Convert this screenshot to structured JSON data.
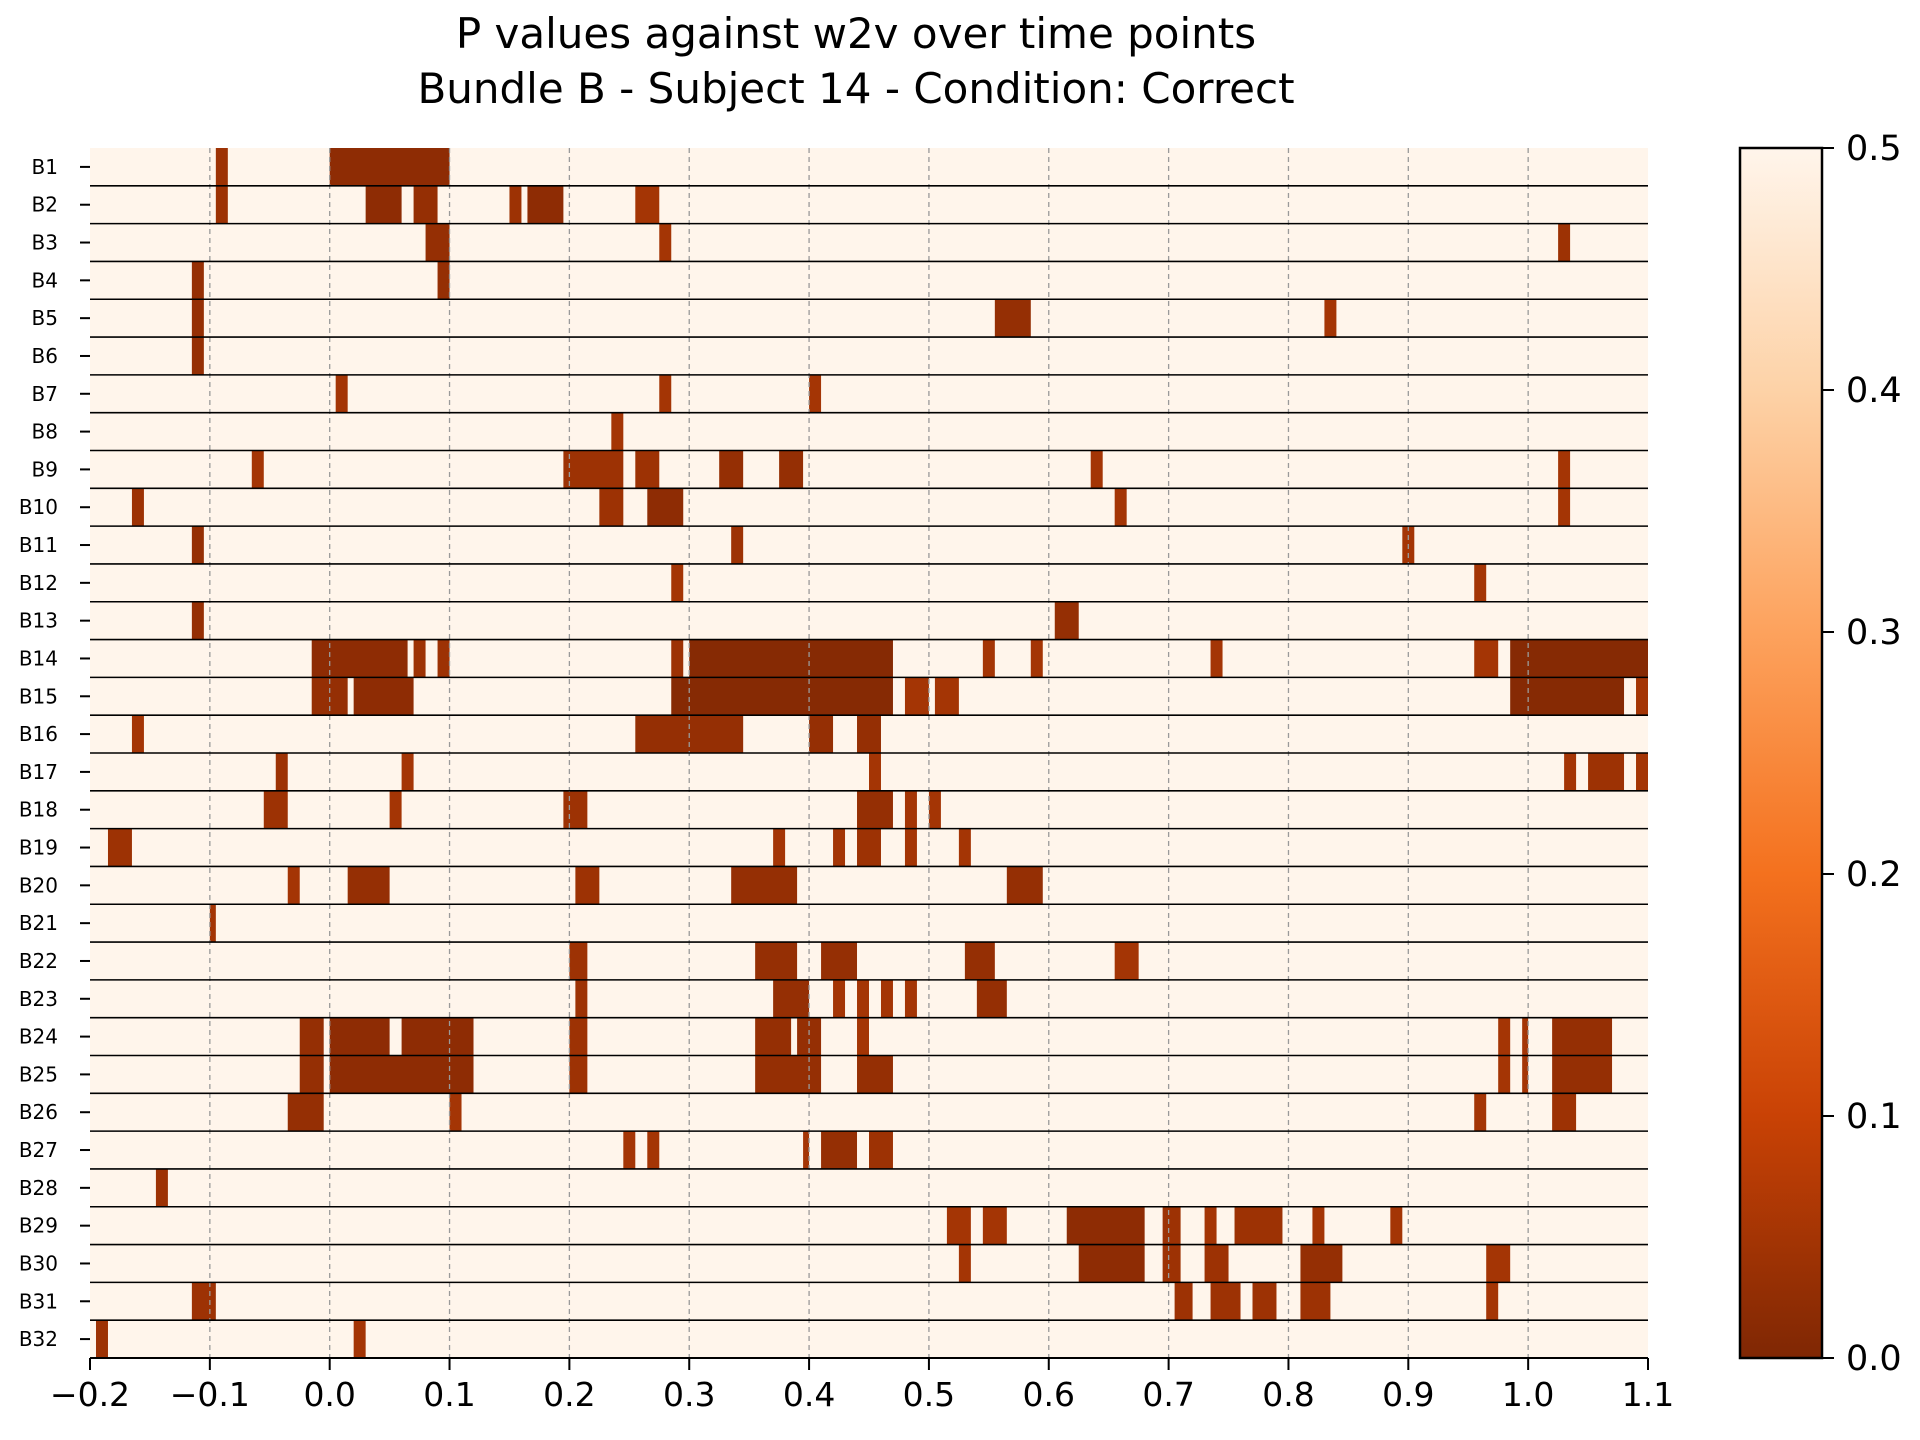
{
  "chart_data": {
    "type": "heatmap",
    "title": "P values against w2v over time points",
    "subtitle": "Bundle B - Subject 14 - Condition: Correct",
    "xlabel": "",
    "ylabel": "",
    "xlim": [
      -0.2,
      1.1
    ],
    "x_ticks": [
      "−0.2",
      "−0.1",
      "0.0",
      "0.1",
      "0.2",
      "0.3",
      "0.4",
      "0.5",
      "0.6",
      "0.7",
      "0.8",
      "0.9",
      "1.0",
      "1.1"
    ],
    "x_tick_values": [
      -0.2,
      -0.1,
      0.0,
      0.1,
      0.2,
      0.3,
      0.4,
      0.5,
      0.6,
      0.7,
      0.8,
      0.9,
      1.0,
      1.1
    ],
    "rows": [
      "B1",
      "B2",
      "B3",
      "B4",
      "B5",
      "B6",
      "B7",
      "B8",
      "B9",
      "B10",
      "B11",
      "B12",
      "B13",
      "B14",
      "B15",
      "B16",
      "B17",
      "B18",
      "B19",
      "B20",
      "B21",
      "B22",
      "B23",
      "B24",
      "B25",
      "B26",
      "B27",
      "B28",
      "B29",
      "B30",
      "B31",
      "B32"
    ],
    "grid": "dashed vertical lines at x ticks",
    "colormap": "Oranges reversed",
    "colorbar": {
      "range": [
        0.0,
        0.5
      ],
      "ticks": [
        "0.0",
        "0.1",
        "0.2",
        "0.3",
        "0.4",
        "0.5"
      ],
      "tick_values": [
        0.0,
        0.1,
        0.2,
        0.3,
        0.4,
        0.5
      ]
    },
    "background_value": 0.5,
    "significant_segments": [
      {
        "row": "B1",
        "x0": -0.095,
        "x1": -0.085,
        "p": 0.04
      },
      {
        "row": "B1",
        "x0": 0.0,
        "x1": 0.1,
        "p": 0.02
      },
      {
        "row": "B2",
        "x0": -0.095,
        "x1": -0.085,
        "p": 0.04
      },
      {
        "row": "B2",
        "x0": 0.03,
        "x1": 0.06,
        "p": 0.02
      },
      {
        "row": "B2",
        "x0": 0.07,
        "x1": 0.09,
        "p": 0.03
      },
      {
        "row": "B2",
        "x0": 0.15,
        "x1": 0.16,
        "p": 0.04
      },
      {
        "row": "B2",
        "x0": 0.165,
        "x1": 0.195,
        "p": 0.02
      },
      {
        "row": "B2",
        "x0": 0.255,
        "x1": 0.275,
        "p": 0.05
      },
      {
        "row": "B3",
        "x0": 0.08,
        "x1": 0.1,
        "p": 0.03
      },
      {
        "row": "B3",
        "x0": 0.275,
        "x1": 0.285,
        "p": 0.05
      },
      {
        "row": "B3",
        "x0": 1.025,
        "x1": 1.035,
        "p": 0.04
      },
      {
        "row": "B4",
        "x0": -0.115,
        "x1": -0.105,
        "p": 0.03
      },
      {
        "row": "B4",
        "x0": 0.09,
        "x1": 0.1,
        "p": 0.03
      },
      {
        "row": "B5",
        "x0": -0.115,
        "x1": -0.105,
        "p": 0.03
      },
      {
        "row": "B5",
        "x0": 0.555,
        "x1": 0.585,
        "p": 0.03
      },
      {
        "row": "B5",
        "x0": 0.83,
        "x1": 0.84,
        "p": 0.05
      },
      {
        "row": "B6",
        "x0": -0.115,
        "x1": -0.105,
        "p": 0.03
      },
      {
        "row": "B7",
        "x0": 0.005,
        "x1": 0.015,
        "p": 0.05
      },
      {
        "row": "B7",
        "x0": 0.275,
        "x1": 0.285,
        "p": 0.05
      },
      {
        "row": "B7",
        "x0": 0.4,
        "x1": 0.41,
        "p": 0.05
      },
      {
        "row": "B8",
        "x0": 0.235,
        "x1": 0.245,
        "p": 0.05
      },
      {
        "row": "B9",
        "x0": -0.065,
        "x1": -0.055,
        "p": 0.05
      },
      {
        "row": "B9",
        "x0": 0.195,
        "x1": 0.245,
        "p": 0.04
      },
      {
        "row": "B9",
        "x0": 0.255,
        "x1": 0.275,
        "p": 0.04
      },
      {
        "row": "B9",
        "x0": 0.325,
        "x1": 0.345,
        "p": 0.03
      },
      {
        "row": "B9",
        "x0": 0.375,
        "x1": 0.395,
        "p": 0.03
      },
      {
        "row": "B9",
        "x0": 0.635,
        "x1": 0.645,
        "p": 0.05
      },
      {
        "row": "B9",
        "x0": 1.025,
        "x1": 1.035,
        "p": 0.05
      },
      {
        "row": "B10",
        "x0": -0.165,
        "x1": -0.155,
        "p": 0.04
      },
      {
        "row": "B10",
        "x0": 0.225,
        "x1": 0.245,
        "p": 0.04
      },
      {
        "row": "B10",
        "x0": 0.265,
        "x1": 0.295,
        "p": 0.02
      },
      {
        "row": "B10",
        "x0": 0.655,
        "x1": 0.665,
        "p": 0.05
      },
      {
        "row": "B10",
        "x0": 1.025,
        "x1": 1.035,
        "p": 0.05
      },
      {
        "row": "B11",
        "x0": -0.115,
        "x1": -0.105,
        "p": 0.03
      },
      {
        "row": "B11",
        "x0": 0.335,
        "x1": 0.345,
        "p": 0.04
      },
      {
        "row": "B11",
        "x0": 0.895,
        "x1": 0.905,
        "p": 0.05
      },
      {
        "row": "B12",
        "x0": 0.285,
        "x1": 0.295,
        "p": 0.05
      },
      {
        "row": "B12",
        "x0": 0.955,
        "x1": 0.965,
        "p": 0.05
      },
      {
        "row": "B13",
        "x0": -0.115,
        "x1": -0.105,
        "p": 0.03
      },
      {
        "row": "B13",
        "x0": 0.605,
        "x1": 0.625,
        "p": 0.03
      },
      {
        "row": "B14",
        "x0": -0.015,
        "x1": 0.065,
        "p": 0.02
      },
      {
        "row": "B14",
        "x0": 0.07,
        "x1": 0.08,
        "p": 0.04
      },
      {
        "row": "B14",
        "x0": 0.09,
        "x1": 0.1,
        "p": 0.04
      },
      {
        "row": "B14",
        "x0": 0.285,
        "x1": 0.295,
        "p": 0.04
      },
      {
        "row": "B14",
        "x0": 0.3,
        "x1": 0.47,
        "p": 0.01
      },
      {
        "row": "B14",
        "x0": 0.545,
        "x1": 0.555,
        "p": 0.05
      },
      {
        "row": "B14",
        "x0": 0.585,
        "x1": 0.595,
        "p": 0.05
      },
      {
        "row": "B14",
        "x0": 0.735,
        "x1": 0.745,
        "p": 0.05
      },
      {
        "row": "B14",
        "x0": 0.955,
        "x1": 0.975,
        "p": 0.05
      },
      {
        "row": "B14",
        "x0": 0.985,
        "x1": 1.1,
        "p": 0.01
      },
      {
        "row": "B15",
        "x0": -0.015,
        "x1": 0.015,
        "p": 0.03
      },
      {
        "row": "B15",
        "x0": 0.02,
        "x1": 0.07,
        "p": 0.02
      },
      {
        "row": "B15",
        "x0": 0.285,
        "x1": 0.47,
        "p": 0.01
      },
      {
        "row": "B15",
        "x0": 0.48,
        "x1": 0.5,
        "p": 0.05
      },
      {
        "row": "B15",
        "x0": 0.505,
        "x1": 0.525,
        "p": 0.05
      },
      {
        "row": "B15",
        "x0": 0.985,
        "x1": 1.08,
        "p": 0.01
      },
      {
        "row": "B15",
        "x0": 1.09,
        "x1": 1.1,
        "p": 0.05
      },
      {
        "row": "B16",
        "x0": -0.165,
        "x1": -0.155,
        "p": 0.05
      },
      {
        "row": "B16",
        "x0": 0.255,
        "x1": 0.345,
        "p": 0.03
      },
      {
        "row": "B16",
        "x0": 0.4,
        "x1": 0.42,
        "p": 0.03
      },
      {
        "row": "B16",
        "x0": 0.44,
        "x1": 0.46,
        "p": 0.03
      },
      {
        "row": "B17",
        "x0": -0.045,
        "x1": -0.035,
        "p": 0.04
      },
      {
        "row": "B17",
        "x0": 0.06,
        "x1": 0.07,
        "p": 0.05
      },
      {
        "row": "B17",
        "x0": 0.45,
        "x1": 0.46,
        "p": 0.05
      },
      {
        "row": "B17",
        "x0": 1.03,
        "x1": 1.04,
        "p": 0.05
      },
      {
        "row": "B17",
        "x0": 1.05,
        "x1": 1.08,
        "p": 0.04
      },
      {
        "row": "B17",
        "x0": 1.09,
        "x1": 1.1,
        "p": 0.05
      },
      {
        "row": "B18",
        "x0": -0.055,
        "x1": -0.035,
        "p": 0.04
      },
      {
        "row": "B18",
        "x0": 0.05,
        "x1": 0.06,
        "p": 0.05
      },
      {
        "row": "B18",
        "x0": 0.195,
        "x1": 0.215,
        "p": 0.04
      },
      {
        "row": "B18",
        "x0": 0.44,
        "x1": 0.47,
        "p": 0.03
      },
      {
        "row": "B18",
        "x0": 0.48,
        "x1": 0.49,
        "p": 0.05
      },
      {
        "row": "B18",
        "x0": 0.5,
        "x1": 0.51,
        "p": 0.05
      },
      {
        "row": "B19",
        "x0": -0.185,
        "x1": -0.165,
        "p": 0.04
      },
      {
        "row": "B19",
        "x0": 0.37,
        "x1": 0.38,
        "p": 0.05
      },
      {
        "row": "B19",
        "x0": 0.42,
        "x1": 0.43,
        "p": 0.05
      },
      {
        "row": "B19",
        "x0": 0.44,
        "x1": 0.46,
        "p": 0.04
      },
      {
        "row": "B19",
        "x0": 0.48,
        "x1": 0.49,
        "p": 0.05
      },
      {
        "row": "B19",
        "x0": 0.525,
        "x1": 0.535,
        "p": 0.05
      },
      {
        "row": "B20",
        "x0": -0.035,
        "x1": -0.025,
        "p": 0.05
      },
      {
        "row": "B20",
        "x0": 0.015,
        "x1": 0.05,
        "p": 0.03
      },
      {
        "row": "B20",
        "x0": 0.205,
        "x1": 0.225,
        "p": 0.04
      },
      {
        "row": "B20",
        "x0": 0.335,
        "x1": 0.39,
        "p": 0.03
      },
      {
        "row": "B20",
        "x0": 0.565,
        "x1": 0.595,
        "p": 0.03
      },
      {
        "row": "B21",
        "x0": -0.1,
        "x1": -0.095,
        "p": 0.05
      },
      {
        "row": "B22",
        "x0": 0.2,
        "x1": 0.215,
        "p": 0.04
      },
      {
        "row": "B22",
        "x0": 0.355,
        "x1": 0.39,
        "p": 0.03
      },
      {
        "row": "B22",
        "x0": 0.41,
        "x1": 0.44,
        "p": 0.03
      },
      {
        "row": "B22",
        "x0": 0.53,
        "x1": 0.555,
        "p": 0.03
      },
      {
        "row": "B22",
        "x0": 0.655,
        "x1": 0.675,
        "p": 0.05
      },
      {
        "row": "B23",
        "x0": 0.205,
        "x1": 0.215,
        "p": 0.04
      },
      {
        "row": "B23",
        "x0": 0.37,
        "x1": 0.4,
        "p": 0.03
      },
      {
        "row": "B23",
        "x0": 0.42,
        "x1": 0.43,
        "p": 0.05
      },
      {
        "row": "B23",
        "x0": 0.44,
        "x1": 0.45,
        "p": 0.05
      },
      {
        "row": "B23",
        "x0": 0.46,
        "x1": 0.47,
        "p": 0.05
      },
      {
        "row": "B23",
        "x0": 0.48,
        "x1": 0.49,
        "p": 0.05
      },
      {
        "row": "B23",
        "x0": 0.54,
        "x1": 0.565,
        "p": 0.03
      },
      {
        "row": "B24",
        "x0": -0.025,
        "x1": -0.005,
        "p": 0.03
      },
      {
        "row": "B24",
        "x0": 0.0,
        "x1": 0.05,
        "p": 0.02
      },
      {
        "row": "B24",
        "x0": 0.06,
        "x1": 0.12,
        "p": 0.02
      },
      {
        "row": "B24",
        "x0": 0.2,
        "x1": 0.215,
        "p": 0.04
      },
      {
        "row": "B24",
        "x0": 0.355,
        "x1": 0.385,
        "p": 0.03
      },
      {
        "row": "B24",
        "x0": 0.39,
        "x1": 0.41,
        "p": 0.03
      },
      {
        "row": "B24",
        "x0": 0.44,
        "x1": 0.45,
        "p": 0.05
      },
      {
        "row": "B24",
        "x0": 0.975,
        "x1": 0.985,
        "p": 0.05
      },
      {
        "row": "B24",
        "x0": 0.995,
        "x1": 1.0,
        "p": 0.05
      },
      {
        "row": "B24",
        "x0": 1.02,
        "x1": 1.07,
        "p": 0.03
      },
      {
        "row": "B25",
        "x0": -0.025,
        "x1": -0.005,
        "p": 0.03
      },
      {
        "row": "B25",
        "x0": 0.0,
        "x1": 0.12,
        "p": 0.02
      },
      {
        "row": "B25",
        "x0": 0.2,
        "x1": 0.215,
        "p": 0.04
      },
      {
        "row": "B25",
        "x0": 0.355,
        "x1": 0.41,
        "p": 0.03
      },
      {
        "row": "B25",
        "x0": 0.44,
        "x1": 0.47,
        "p": 0.03
      },
      {
        "row": "B25",
        "x0": 0.975,
        "x1": 0.985,
        "p": 0.05
      },
      {
        "row": "B25",
        "x0": 0.995,
        "x1": 1.0,
        "p": 0.05
      },
      {
        "row": "B25",
        "x0": 1.02,
        "x1": 1.07,
        "p": 0.03
      },
      {
        "row": "B26",
        "x0": -0.035,
        "x1": -0.005,
        "p": 0.03
      },
      {
        "row": "B26",
        "x0": 0.1,
        "x1": 0.11,
        "p": 0.05
      },
      {
        "row": "B26",
        "x0": 0.955,
        "x1": 0.965,
        "p": 0.05
      },
      {
        "row": "B26",
        "x0": 1.02,
        "x1": 1.04,
        "p": 0.04
      },
      {
        "row": "B27",
        "x0": 0.245,
        "x1": 0.255,
        "p": 0.05
      },
      {
        "row": "B27",
        "x0": 0.265,
        "x1": 0.275,
        "p": 0.05
      },
      {
        "row": "B27",
        "x0": 0.395,
        "x1": 0.4,
        "p": 0.05
      },
      {
        "row": "B27",
        "x0": 0.41,
        "x1": 0.44,
        "p": 0.03
      },
      {
        "row": "B27",
        "x0": 0.45,
        "x1": 0.47,
        "p": 0.04
      },
      {
        "row": "B28",
        "x0": -0.145,
        "x1": -0.135,
        "p": 0.04
      },
      {
        "row": "B29",
        "x0": 0.515,
        "x1": 0.535,
        "p": 0.05
      },
      {
        "row": "B29",
        "x0": 0.545,
        "x1": 0.565,
        "p": 0.05
      },
      {
        "row": "B29",
        "x0": 0.615,
        "x1": 0.68,
        "p": 0.02
      },
      {
        "row": "B29",
        "x0": 0.695,
        "x1": 0.71,
        "p": 0.04
      },
      {
        "row": "B29",
        "x0": 0.73,
        "x1": 0.74,
        "p": 0.05
      },
      {
        "row": "B29",
        "x0": 0.755,
        "x1": 0.795,
        "p": 0.04
      },
      {
        "row": "B29",
        "x0": 0.82,
        "x1": 0.83,
        "p": 0.05
      },
      {
        "row": "B29",
        "x0": 0.885,
        "x1": 0.895,
        "p": 0.05
      },
      {
        "row": "B30",
        "x0": 0.525,
        "x1": 0.535,
        "p": 0.05
      },
      {
        "row": "B30",
        "x0": 0.625,
        "x1": 0.68,
        "p": 0.02
      },
      {
        "row": "B30",
        "x0": 0.695,
        "x1": 0.71,
        "p": 0.04
      },
      {
        "row": "B30",
        "x0": 0.73,
        "x1": 0.75,
        "p": 0.04
      },
      {
        "row": "B30",
        "x0": 0.81,
        "x1": 0.845,
        "p": 0.03
      },
      {
        "row": "B30",
        "x0": 0.965,
        "x1": 0.985,
        "p": 0.05
      },
      {
        "row": "B31",
        "x0": -0.115,
        "x1": -0.095,
        "p": 0.04
      },
      {
        "row": "B31",
        "x0": 0.705,
        "x1": 0.72,
        "p": 0.04
      },
      {
        "row": "B31",
        "x0": 0.735,
        "x1": 0.76,
        "p": 0.04
      },
      {
        "row": "B31",
        "x0": 0.77,
        "x1": 0.79,
        "p": 0.04
      },
      {
        "row": "B31",
        "x0": 0.81,
        "x1": 0.835,
        "p": 0.04
      },
      {
        "row": "B31",
        "x0": 0.965,
        "x1": 0.975,
        "p": 0.05
      },
      {
        "row": "B32",
        "x0": -0.195,
        "x1": -0.185,
        "p": 0.04
      },
      {
        "row": "B32",
        "x0": 0.02,
        "x1": 0.03,
        "p": 0.05
      }
    ]
  }
}
